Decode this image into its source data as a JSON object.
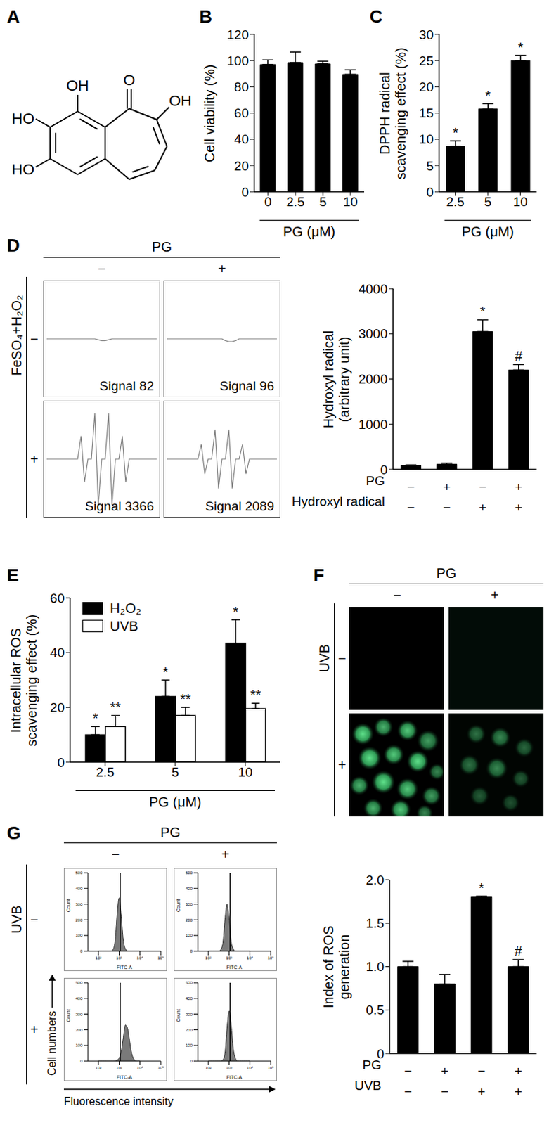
{
  "structure": {
    "panel": "A",
    "labels": [
      "OH",
      "O",
      "OH",
      "HO",
      "HO"
    ]
  },
  "microscopy": {
    "panel": "F",
    "header": "PG",
    "columns": [
      "−",
      "+"
    ],
    "row_label": "UVB",
    "rows": [
      "−",
      "+"
    ]
  },
  "chart_data": [
    {
      "panel": "B",
      "type": "bar",
      "categories": [
        "0",
        "2.5",
        "5",
        "10"
      ],
      "values": [
        97,
        98.5,
        97.5,
        89.5
      ],
      "errors": [
        3.5,
        8,
        2,
        3.5
      ],
      "color": "#000000",
      "ylim": [
        0,
        120
      ],
      "yticks": [
        0,
        20,
        40,
        60,
        80,
        100,
        120
      ],
      "y_label": [
        "Cell viability (%)"
      ],
      "x_label": "PG (μM)"
    },
    {
      "panel": "C",
      "type": "bar",
      "categories": [
        "2.5",
        "5",
        "10"
      ],
      "values": [
        8.7,
        15.8,
        25
      ],
      "errors": [
        1,
        1,
        1
      ],
      "annotations": [
        "*",
        "*",
        "*"
      ],
      "color": "#000000",
      "ylim": [
        0,
        30
      ],
      "yticks": [
        0,
        5,
        10,
        15,
        20,
        25,
        30
      ],
      "y_label": [
        "DPPH radical",
        "scavenging effect (%)"
      ],
      "x_label": "PG (μM)"
    },
    {
      "panel": "D",
      "type": "line",
      "header": "PG",
      "columns": [
        "−",
        "+"
      ],
      "row_label": "FeSO₄+H₂O₂",
      "rows": [
        "−",
        "+"
      ],
      "tick_labels": false,
      "color": "#808080",
      "ylim": [
        -60,
        60
      ],
      "spectra": [
        {
          "label": "Signal 82",
          "values": [
            0,
            0,
            0,
            0,
            0,
            0,
            0,
            0,
            0,
            0,
            0,
            0,
            0,
            0,
            0,
            -1,
            -2,
            -2,
            -1,
            0,
            0,
            0,
            0,
            0,
            0,
            0,
            0,
            0,
            0,
            0,
            0,
            0,
            0
          ]
        },
        {
          "label": "Signal 96",
          "values": [
            0,
            0,
            0,
            0,
            0,
            0,
            0,
            0,
            0,
            0,
            0,
            0,
            0,
            0,
            0,
            0,
            0,
            -2,
            -3,
            -3,
            -2,
            0,
            0,
            0,
            0,
            0,
            0,
            0,
            0,
            0,
            0,
            0,
            0
          ]
        },
        {
          "label": "Signal 3366",
          "values": [
            0,
            0,
            0,
            0,
            0,
            0,
            0,
            0,
            0,
            0,
            25,
            -25,
            0,
            0,
            50,
            -50,
            0,
            0,
            50,
            -50,
            0,
            0,
            25,
            -25,
            0,
            0,
            0,
            0,
            0,
            0,
            0,
            0,
            0
          ]
        },
        {
          "label": "Signal 2089",
          "values": [
            0,
            0,
            0,
            0,
            0,
            0,
            0,
            0,
            0,
            0,
            16,
            -16,
            0,
            0,
            32,
            -32,
            0,
            0,
            32,
            -32,
            0,
            0,
            16,
            -16,
            0,
            0,
            0,
            0,
            0,
            0,
            0,
            0,
            0
          ]
        }
      ]
    },
    {
      "type": "bar",
      "values": [
        85,
        115,
        3050,
        2200
      ],
      "errors": [
        15,
        25,
        260,
        120
      ],
      "annotations": [
        null,
        null,
        "*",
        "#"
      ],
      "color": "#000000",
      "ylim": [
        0,
        4000
      ],
      "yticks": [
        0,
        1000,
        2000,
        3000,
        4000
      ],
      "y_label": [
        "Hydroxyl radical",
        "(arbitrary unit)"
      ],
      "rows": [
        {
          "name": "PG",
          "values": [
            "−",
            "+",
            "−",
            "+"
          ]
        },
        {
          "name": "Hydroxyl radical",
          "values": [
            "−",
            "−",
            "+",
            "+"
          ]
        }
      ]
    },
    {
      "panel": "E",
      "type": "bar",
      "categories": [
        "2.5",
        "5",
        "10"
      ],
      "series": [
        {
          "name": "H₂O₂",
          "color": "#000000",
          "values": [
            10,
            24,
            43.5
          ],
          "errors": [
            3,
            6,
            8.5
          ],
          "annotations": [
            "*",
            "*",
            "*"
          ]
        },
        {
          "name": "UVB",
          "color": "#ffffff",
          "values": [
            13,
            17,
            19.5
          ],
          "errors": [
            4,
            3,
            2
          ],
          "annotations": [
            "**",
            "**",
            "**"
          ]
        }
      ],
      "ylim": [
        0,
        60
      ],
      "yticks": [
        0,
        20,
        40,
        60
      ],
      "y_label": [
        "Intracellular ROS",
        "scavenging effect (%)"
      ],
      "x_label": "PG (μM)",
      "legend": "top-left"
    },
    {
      "panel": "G",
      "type": "area",
      "header": "PG",
      "columns": [
        "−",
        "+"
      ],
      "row_label": "UVB",
      "rows": [
        "−",
        "+"
      ],
      "color": "#7a7a7a",
      "x": [
        2,
        2.1,
        2.2,
        2.3,
        2.4,
        2.5,
        2.6,
        2.7,
        2.8,
        2.9,
        3,
        3.1,
        3.2,
        3.3,
        3.4,
        3.5,
        3.6,
        3.7,
        3.8,
        3.9,
        4
      ],
      "xlim": [
        1.5,
        5
      ],
      "xticks": [
        {
          "value": 2,
          "label": "10²"
        },
        {
          "value": 3,
          "label": "10³"
        },
        {
          "value": 4,
          "label": "10⁴"
        },
        {
          "value": 5,
          "label": "10⁵"
        }
      ],
      "ylim": [
        0,
        500
      ],
      "yticks": [
        0,
        100,
        200,
        300,
        400,
        500
      ],
      "x_label": "FITC-A",
      "y_label": "Count",
      "gate": 3.05,
      "axis_titles": {
        "y": "Cell numbers",
        "x": "Fluorescence intensity"
      },
      "histograms": [
        [
          0,
          0,
          0,
          0,
          0,
          0,
          0,
          10,
          60,
          230,
          340,
          220,
          70,
          15,
          0,
          0,
          0,
          0,
          0,
          0,
          0
        ],
        [
          0,
          0,
          0,
          0,
          0,
          0,
          10,
          50,
          200,
          300,
          210,
          60,
          15,
          0,
          0,
          0,
          0,
          0,
          0,
          0,
          0
        ],
        [
          0,
          0,
          0,
          0,
          0,
          0,
          0,
          0,
          0,
          5,
          20,
          60,
          150,
          230,
          210,
          130,
          50,
          15,
          0,
          0,
          0
        ],
        [
          0,
          0,
          0,
          0,
          0,
          0,
          0,
          8,
          50,
          210,
          320,
          230,
          80,
          20,
          0,
          0,
          0,
          0,
          0,
          0,
          0
        ]
      ]
    },
    {
      "type": "bar",
      "values": [
        1,
        0.8,
        1.8,
        1
      ],
      "errors": [
        0.06,
        0.11,
        0.01,
        0.08
      ],
      "annotations": [
        null,
        null,
        "*",
        "#"
      ],
      "color": "#000000",
      "ylim": [
        0,
        2
      ],
      "yticks": [
        0,
        0.5,
        {
          "value": 1,
          "label": "1.0"
        },
        1.5,
        {
          "value": 2,
          "label": "2.0"
        }
      ],
      "y_label": [
        "Index of ROS",
        "generation"
      ],
      "rows": [
        {
          "name": "PG",
          "values": [
            "−",
            "+",
            "−",
            "+"
          ]
        },
        {
          "name": "UVB",
          "values": [
            "−",
            "−",
            "+",
            "+"
          ]
        }
      ]
    }
  ]
}
